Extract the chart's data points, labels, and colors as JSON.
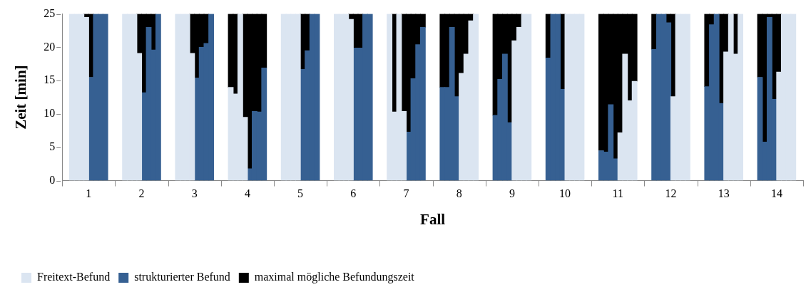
{
  "chart_data": {
    "type": "bar",
    "stacked": true,
    "xlabel": "Fall",
    "ylabel": "Zeit [min]",
    "legend": "bottom left",
    "grid": false,
    "xlim": [
      0.5,
      14.5
    ],
    "xticks": [
      1,
      2,
      3,
      4,
      5,
      6,
      7,
      8,
      9,
      10,
      11,
      12,
      13,
      14
    ],
    "ylim": [
      0,
      25
    ],
    "yticks": [
      0,
      5,
      10,
      15,
      20,
      25
    ],
    "x": [
      0.685,
      0.775,
      0.865,
      0.955,
      1.045,
      1.135,
      1.225,
      1.315,
      1.685,
      1.775,
      1.865,
      1.955,
      2.045,
      2.135,
      2.225,
      2.315,
      2.685,
      2.775,
      2.865,
      2.955,
      3.045,
      3.135,
      3.225,
      3.315,
      3.685,
      3.775,
      3.865,
      3.955,
      4.045,
      4.135,
      4.225,
      4.315,
      4.685,
      4.775,
      4.865,
      4.955,
      5.045,
      5.135,
      5.225,
      5.315,
      5.685,
      5.775,
      5.865,
      5.955,
      6.045,
      6.135,
      6.225,
      6.315,
      6.685,
      6.775,
      6.865,
      6.955,
      7.045,
      7.135,
      7.225,
      7.315,
      7.685,
      7.775,
      7.865,
      7.955,
      8.045,
      8.135,
      8.225,
      8.315,
      8.685,
      8.775,
      8.865,
      8.955,
      9.045,
      9.135,
      9.225,
      9.315,
      9.685,
      9.775,
      9.865,
      9.955,
      10.045,
      10.135,
      10.225,
      10.315,
      10.685,
      10.775,
      10.865,
      10.955,
      11.045,
      11.135,
      11.225,
      11.315,
      11.685,
      11.775,
      11.865,
      11.955,
      12.045,
      12.135,
      12.225,
      12.315,
      12.685,
      12.775,
      12.865,
      12.955,
      13.045,
      13.135,
      13.225,
      13.315,
      13.685,
      13.775,
      13.865,
      13.955,
      14.045,
      14.135,
      14.225,
      14.315
    ],
    "series": [
      {
        "name": "Freitext-Befund",
        "color": "#dbe5f1",
        "values": [
          25,
          25,
          25,
          24.5,
          null,
          null,
          null,
          null,
          25,
          25,
          25,
          19.1,
          null,
          null,
          null,
          null,
          25,
          25,
          25,
          19.1,
          null,
          null,
          null,
          null,
          14,
          13,
          25,
          9.5,
          null,
          null,
          null,
          null,
          25,
          25,
          25,
          25,
          null,
          null,
          null,
          null,
          25,
          25,
          25,
          24.2,
          null,
          null,
          null,
          null,
          25,
          10.3,
          25,
          10.4,
          null,
          null,
          null,
          null,
          null,
          null,
          null,
          null,
          16.1,
          19,
          24,
          25,
          null,
          null,
          null,
          null,
          21,
          23,
          25,
          25,
          null,
          null,
          null,
          null,
          25,
          25,
          25,
          25,
          null,
          null,
          null,
          null,
          7.2,
          19,
          12,
          14.9,
          null,
          null,
          null,
          null,
          12.6,
          25,
          25,
          25,
          null,
          null,
          null,
          null,
          19.3,
          25,
          19,
          25,
          null,
          null,
          null,
          null,
          16.3,
          25,
          25,
          25
        ]
      },
      {
        "name": "strukturierter Befund",
        "color": "#366092",
        "values": [
          null,
          null,
          null,
          null,
          15.5,
          25,
          25,
          25,
          null,
          null,
          null,
          null,
          13.2,
          23,
          19.6,
          25,
          null,
          null,
          null,
          null,
          15.4,
          20,
          20.6,
          25,
          null,
          null,
          null,
          null,
          1.8,
          10.4,
          10.3,
          16.9,
          null,
          null,
          null,
          null,
          16.7,
          19.5,
          25,
          25,
          null,
          null,
          null,
          null,
          19.9,
          19.9,
          25,
          25,
          null,
          null,
          null,
          null,
          7.3,
          15.3,
          20.4,
          23,
          14,
          14,
          23,
          12.6,
          null,
          null,
          null,
          null,
          9.8,
          15.2,
          19,
          8.7,
          null,
          null,
          null,
          null,
          18.4,
          25,
          25,
          13.7,
          null,
          null,
          null,
          null,
          4.5,
          4.3,
          11.4,
          3.3,
          null,
          null,
          null,
          null,
          19.7,
          25,
          25,
          23.7,
          null,
          null,
          null,
          null,
          14.1,
          23.4,
          25,
          11.6,
          null,
          null,
          null,
          null,
          15.5,
          5.8,
          24.5,
          12.2,
          null,
          null,
          null,
          null
        ]
      },
      {
        "name": "maximal mögliche Befundungszeit",
        "color": "#000000",
        "values": [
          null,
          null,
          null,
          0.5,
          9.5,
          null,
          null,
          null,
          null,
          null,
          null,
          5.9,
          11.8,
          2,
          5.4,
          null,
          null,
          null,
          null,
          5.9,
          9.6,
          5,
          4.4,
          null,
          11,
          12,
          null,
          15.5,
          23.2,
          14.6,
          14.7,
          8.1,
          null,
          null,
          null,
          null,
          8.3,
          5.5,
          null,
          null,
          null,
          null,
          null,
          0.8,
          5.1,
          5.1,
          null,
          null,
          null,
          14.7,
          null,
          14.6,
          17.7,
          9.7,
          4.6,
          2,
          11,
          11,
          2,
          12.4,
          8.9,
          6,
          1,
          null,
          15.2,
          9.8,
          6,
          16.3,
          4,
          2,
          null,
          null,
          6.6,
          null,
          null,
          11.3,
          null,
          null,
          null,
          null,
          20.5,
          20.7,
          13.6,
          21.7,
          17.8,
          6,
          13,
          10.1,
          5.3,
          null,
          null,
          1.3,
          12.4,
          null,
          null,
          null,
          10.9,
          1.6,
          null,
          13.4,
          5.7,
          null,
          6,
          null,
          9.5,
          19.2,
          0.5,
          12.8,
          8.7,
          null,
          null,
          null
        ]
      }
    ]
  }
}
